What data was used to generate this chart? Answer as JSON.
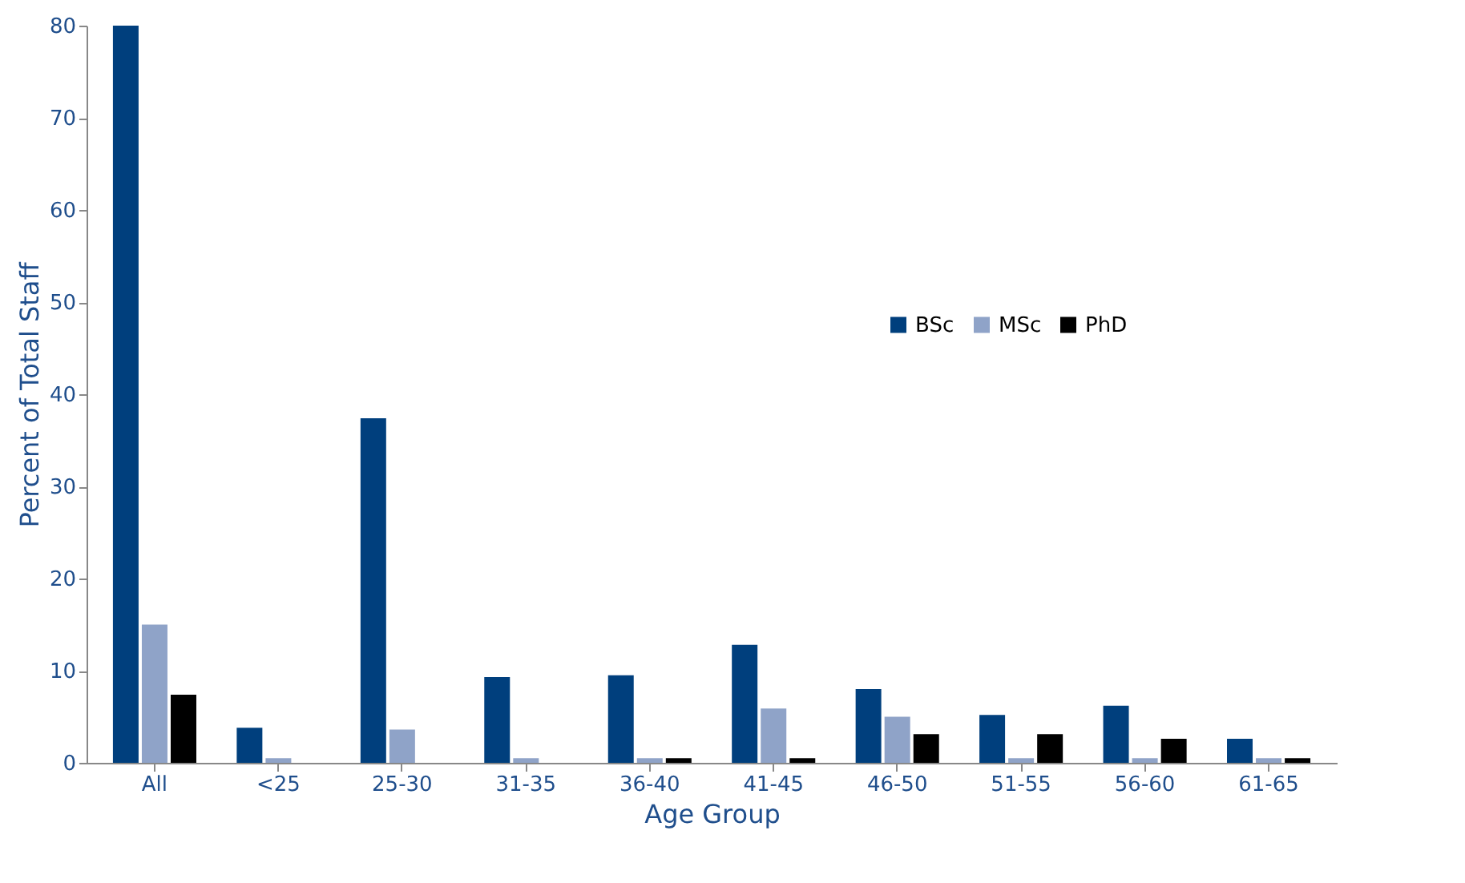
{
  "chart_data": {
    "type": "bar",
    "xlabel": "Age Group",
    "ylabel": "Percent of Total Staff",
    "categories": [
      "All",
      "<25",
      "25-30",
      "31-35",
      "36-40",
      "41-45",
      "46-50",
      "51-55",
      "56-60",
      "61-65"
    ],
    "series": [
      {
        "name": "BSc",
        "color": "#003f7d",
        "values": [
          80,
          3.8,
          37.4,
          9.3,
          9.5,
          12.8,
          8,
          5.2,
          6.2,
          2.6
        ]
      },
      {
        "name": "MSc",
        "color": "#8fa3c8",
        "values": [
          15,
          0.5,
          3.6,
          0.5,
          0.5,
          5.9,
          5,
          0.5,
          0.5,
          0.5
        ]
      },
      {
        "name": "PhD",
        "color": "#000000",
        "values": [
          7.4,
          0,
          0,
          0,
          0.5,
          0.5,
          3.1,
          3.1,
          2.6,
          0.5
        ]
      }
    ],
    "ylim": [
      0,
      80
    ],
    "yticks": [
      0,
      10,
      20,
      30,
      40,
      50,
      60,
      70,
      80
    ],
    "grid": false,
    "legend": "right"
  }
}
